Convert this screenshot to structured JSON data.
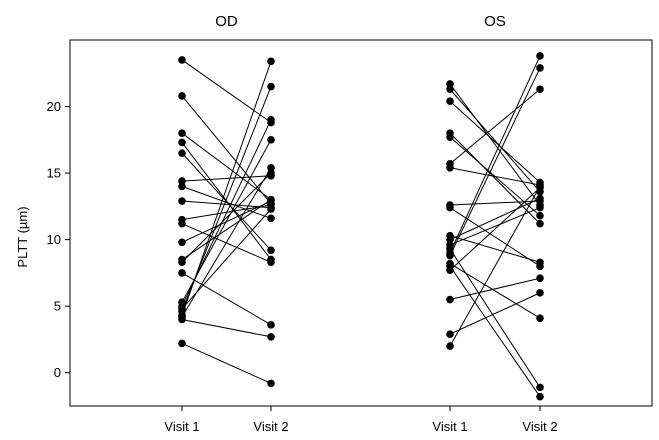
{
  "chart_data": {
    "type": "scatter",
    "ylabel": "PLTT (µm)",
    "ylim": [
      -2.5,
      25
    ],
    "yticks": [
      0,
      5,
      10,
      15,
      20
    ],
    "grid": false,
    "legend": "none",
    "marker_color": "#000000",
    "panels": [
      {
        "title": "OD",
        "x_categories": [
          "Visit 1",
          "Visit 2"
        ],
        "pairs": [
          [
            23.5,
            18.8
          ],
          [
            20.8,
            12.7
          ],
          [
            18.0,
            13.0
          ],
          [
            17.3,
            8.5
          ],
          [
            16.5,
            9.2
          ],
          [
            14.4,
            14.8
          ],
          [
            14.0,
            11.6
          ],
          [
            12.9,
            12.4
          ],
          [
            11.5,
            12.6
          ],
          [
            11.2,
            8.3
          ],
          [
            9.8,
            12.9
          ],
          [
            8.5,
            13.0
          ],
          [
            8.3,
            15.0
          ],
          [
            7.5,
            3.6
          ],
          [
            5.3,
            17.5
          ],
          [
            5.0,
            19.0
          ],
          [
            4.8,
            12.3
          ],
          [
            4.6,
            21.5
          ],
          [
            4.3,
            23.4
          ],
          [
            4.2,
            15.4
          ],
          [
            4.0,
            2.7
          ],
          [
            2.2,
            -0.8
          ]
        ]
      },
      {
        "title": "OS",
        "x_categories": [
          "Visit 1",
          "Visit 2"
        ],
        "pairs": [
          [
            21.7,
            12.6
          ],
          [
            21.3,
            13.6
          ],
          [
            20.4,
            14.3
          ],
          [
            18.0,
            11.2
          ],
          [
            17.7,
            11.8
          ],
          [
            15.7,
            21.3
          ],
          [
            15.4,
            14.1
          ],
          [
            12.6,
            12.9
          ],
          [
            12.4,
            8.0
          ],
          [
            10.3,
            8.3
          ],
          [
            10.0,
            13.1
          ],
          [
            9.6,
            12.4
          ],
          [
            9.3,
            -1.1
          ],
          [
            9.0,
            23.8
          ],
          [
            8.8,
            22.9
          ],
          [
            8.2,
            4.1
          ],
          [
            8.0,
            -1.8
          ],
          [
            7.7,
            13.9
          ],
          [
            5.5,
            7.1
          ],
          [
            2.9,
            6.0
          ],
          [
            2.0,
            14.0
          ]
        ]
      }
    ]
  }
}
